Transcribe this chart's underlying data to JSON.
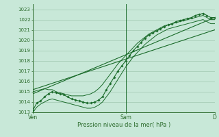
{
  "xlabel": "Pression niveau de la mer( hPa )",
  "xtick_labels": [
    "Ven",
    "Sam",
    "D"
  ],
  "xtick_positions": [
    0,
    24,
    47
  ],
  "ylim": [
    1013.0,
    1023.5
  ],
  "yticks": [
    1013,
    1014,
    1015,
    1016,
    1017,
    1018,
    1019,
    1020,
    1021,
    1022,
    1023
  ],
  "bg_color": "#c8e8d8",
  "grid_color": "#a0c8b0",
  "line_color": "#1a6b2a",
  "border_color": "#2a6a2a",
  "vline_x": 24,
  "n_points": 48,
  "main_series": [
    1013.2,
    1013.9,
    1014.1,
    1014.5,
    1014.8,
    1015.0,
    1014.9,
    1014.8,
    1014.7,
    1014.5,
    1014.3,
    1014.2,
    1014.1,
    1014.0,
    1013.9,
    1013.9,
    1014.0,
    1014.2,
    1014.5,
    1015.2,
    1015.8,
    1016.4,
    1017.0,
    1017.5,
    1018.0,
    1018.5,
    1019.0,
    1019.4,
    1019.8,
    1020.2,
    1020.5,
    1020.7,
    1020.9,
    1021.1,
    1021.3,
    1021.5,
    1021.6,
    1021.8,
    1021.9,
    1022.0,
    1022.1,
    1022.2,
    1022.4,
    1022.5,
    1022.6,
    1022.4,
    1022.2,
    1022.2
  ],
  "upper_band": [
    1015.0,
    1015.1,
    1015.2,
    1015.3,
    1015.2,
    1015.2,
    1015.0,
    1014.9,
    1014.8,
    1014.7,
    1014.6,
    1014.6,
    1014.6,
    1014.6,
    1014.7,
    1014.8,
    1015.0,
    1015.3,
    1015.7,
    1016.2,
    1016.7,
    1017.2,
    1017.7,
    1018.1,
    1018.5,
    1018.9,
    1019.3,
    1019.7,
    1020.0,
    1020.3,
    1020.6,
    1020.8,
    1021.0,
    1021.2,
    1021.4,
    1021.5,
    1021.6,
    1021.7,
    1021.8,
    1021.9,
    1022.0,
    1022.1,
    1022.2,
    1022.3,
    1022.4,
    1022.2,
    1022.0,
    1022.0
  ],
  "lower_band": [
    1013.0,
    1013.5,
    1013.8,
    1014.0,
    1014.2,
    1014.3,
    1014.2,
    1014.1,
    1014.0,
    1013.9,
    1013.8,
    1013.7,
    1013.6,
    1013.5,
    1013.4,
    1013.4,
    1013.5,
    1013.7,
    1014.0,
    1014.5,
    1015.0,
    1015.6,
    1016.2,
    1016.8,
    1017.4,
    1017.9,
    1018.4,
    1018.8,
    1019.2,
    1019.6,
    1019.9,
    1020.2,
    1020.5,
    1020.7,
    1020.9,
    1021.1,
    1021.2,
    1021.3,
    1021.4,
    1021.5,
    1021.6,
    1021.7,
    1021.8,
    1021.9,
    1022.0,
    1021.8,
    1021.6,
    1021.6
  ],
  "trend1_x": [
    0,
    47
  ],
  "trend1_y": [
    1014.8,
    1022.2
  ],
  "trend2_x": [
    0,
    47
  ],
  "trend2_y": [
    1015.2,
    1021.0
  ]
}
